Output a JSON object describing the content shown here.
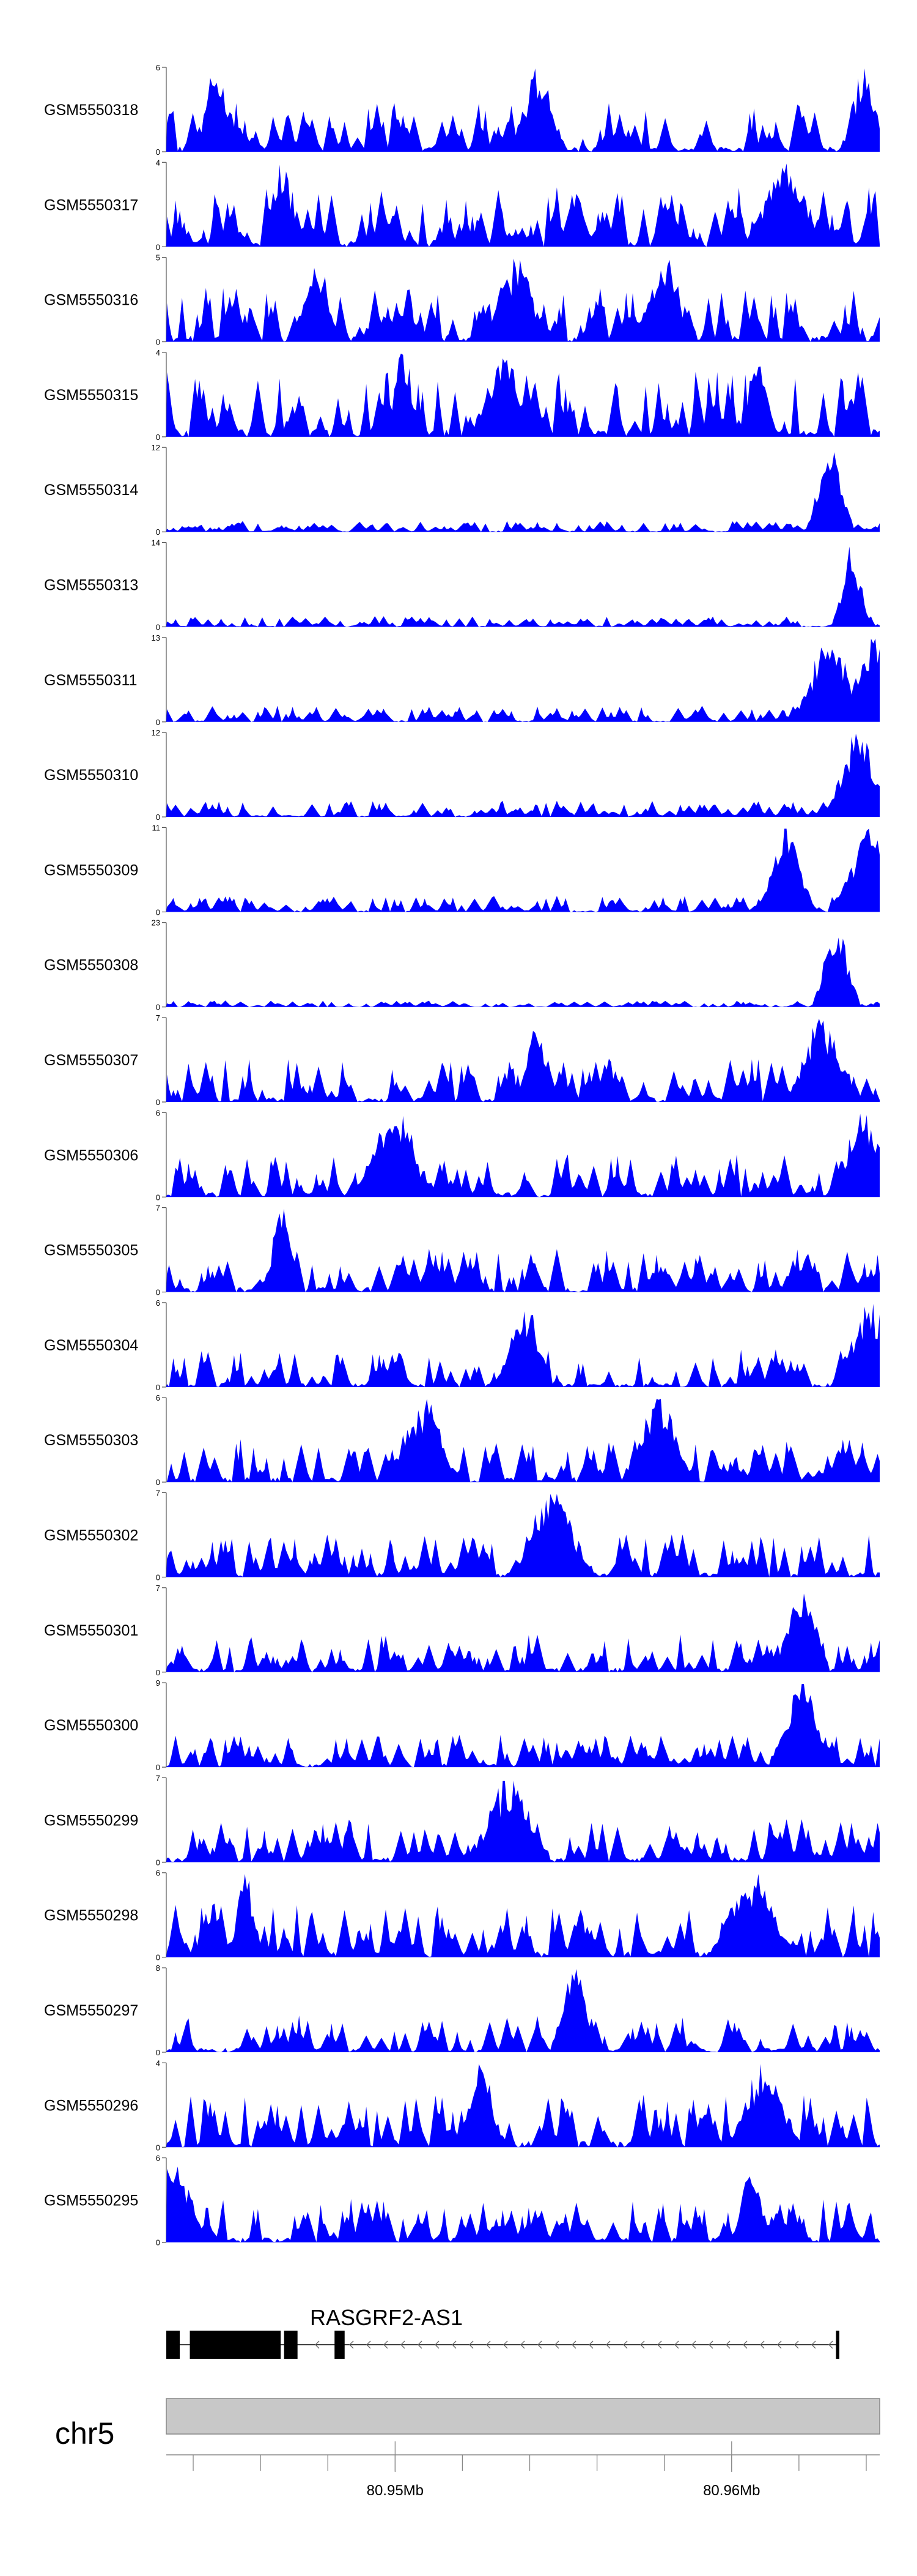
{
  "chart_data": {
    "type": "area",
    "fill_color": "#0000ff",
    "samples": [
      {
        "name": "GSM5550318",
        "ymax": "6",
        "ymin": "0",
        "peak_locus": [
          0.07,
          0.52,
          0.98
        ],
        "level": 0.45,
        "seed": 11
      },
      {
        "name": "GSM5550317",
        "ymax": "4",
        "ymin": "0",
        "peak_locus": [
          0.16,
          0.87
        ],
        "level": 0.55,
        "seed": 23
      },
      {
        "name": "GSM5550316",
        "ymax": "5",
        "ymin": "0",
        "peak_locus": [
          0.21,
          0.49,
          0.7
        ],
        "level": 0.5,
        "seed": 37
      },
      {
        "name": "GSM5550315",
        "ymax": "4",
        "ymin": "0",
        "peak_locus": [
          0.33,
          0.47,
          0.83
        ],
        "level": 0.6,
        "seed": 41
      },
      {
        "name": "GSM5550314",
        "ymax": "12",
        "ymin": "0",
        "peak_locus": [
          0.93
        ],
        "level": 0.1,
        "seed": 53
      },
      {
        "name": "GSM5550313",
        "ymax": "14",
        "ymin": "0",
        "peak_locus": [
          0.96
        ],
        "level": 0.1,
        "seed": 67
      },
      {
        "name": "GSM5550311",
        "ymax": "13",
        "ymin": "0",
        "peak_locus": [
          0.93,
          0.99
        ],
        "level": 0.15,
        "seed": 71
      },
      {
        "name": "GSM5550310",
        "ymax": "12",
        "ymin": "0",
        "peak_locus": [
          0.97
        ],
        "level": 0.15,
        "seed": 83
      },
      {
        "name": "GSM5550309",
        "ymax": "11",
        "ymin": "0",
        "peak_locus": [
          0.87,
          0.99
        ],
        "level": 0.15,
        "seed": 97
      },
      {
        "name": "GSM5550308",
        "ymax": "23",
        "ymin": "0",
        "peak_locus": [
          0.94
        ],
        "level": 0.06,
        "seed": 101
      },
      {
        "name": "GSM5550307",
        "ymax": "7",
        "ymin": "0",
        "peak_locus": [
          0.52,
          0.92
        ],
        "level": 0.4,
        "seed": 113
      },
      {
        "name": "GSM5550306",
        "ymax": "6",
        "ymin": "0",
        "peak_locus": [
          0.32,
          0.98
        ],
        "level": 0.4,
        "seed": 127
      },
      {
        "name": "GSM5550305",
        "ymax": "7",
        "ymin": "0",
        "peak_locus": [
          0.16
        ],
        "level": 0.4,
        "seed": 131
      },
      {
        "name": "GSM5550304",
        "ymax": "6",
        "ymin": "0",
        "peak_locus": [
          0.5,
          0.99
        ],
        "level": 0.35,
        "seed": 149
      },
      {
        "name": "GSM5550303",
        "ymax": "6",
        "ymin": "0",
        "peak_locus": [
          0.36,
          0.69
        ],
        "level": 0.4,
        "seed": 151
      },
      {
        "name": "GSM5550302",
        "ymax": "7",
        "ymin": "0",
        "peak_locus": [
          0.54
        ],
        "level": 0.4,
        "seed": 163
      },
      {
        "name": "GSM5550301",
        "ymax": "7",
        "ymin": "0",
        "peak_locus": [
          0.89
        ],
        "level": 0.35,
        "seed": 173
      },
      {
        "name": "GSM5550300",
        "ymax": "9",
        "ymin": "0",
        "peak_locus": [
          0.89
        ],
        "level": 0.3,
        "seed": 181
      },
      {
        "name": "GSM5550299",
        "ymax": "7",
        "ymin": "0",
        "peak_locus": [
          0.48
        ],
        "level": 0.4,
        "seed": 191
      },
      {
        "name": "GSM5550298",
        "ymax": "6",
        "ymin": "0",
        "peak_locus": [
          0.11,
          0.82
        ],
        "level": 0.5,
        "seed": 199
      },
      {
        "name": "GSM5550297",
        "ymax": "8",
        "ymin": "0",
        "peak_locus": [
          0.57
        ],
        "level": 0.35,
        "seed": 211
      },
      {
        "name": "GSM5550296",
        "ymax": "4",
        "ymin": "0",
        "peak_locus": [
          0.44,
          0.84
        ],
        "level": 0.5,
        "seed": 223
      },
      {
        "name": "GSM5550295",
        "ymax": "6",
        "ymin": "0",
        "peak_locus": [
          0.01,
          0.82
        ],
        "level": 0.4,
        "seed": 227
      }
    ],
    "gene": {
      "name": "RASGRF2-AS1",
      "strand": "-",
      "start_mb": 80.9432,
      "end_mb": 80.9632,
      "exons_mb": [
        [
          80.9432,
          80.9436
        ],
        [
          80.9439,
          80.9466
        ],
        [
          80.9467,
          80.9471
        ],
        [
          80.9482,
          80.9485
        ],
        [
          80.9631,
          80.9632
        ]
      ]
    },
    "genome_axis": {
      "chromosome": "chr5",
      "range_mb": [
        80.9432,
        80.9644
      ],
      "tick_labels": [
        {
          "value": 80.95,
          "label": "80.95Mb"
        },
        {
          "value": 80.96,
          "label": "80.96Mb"
        }
      ],
      "minor_step_mb": 0.002
    }
  }
}
